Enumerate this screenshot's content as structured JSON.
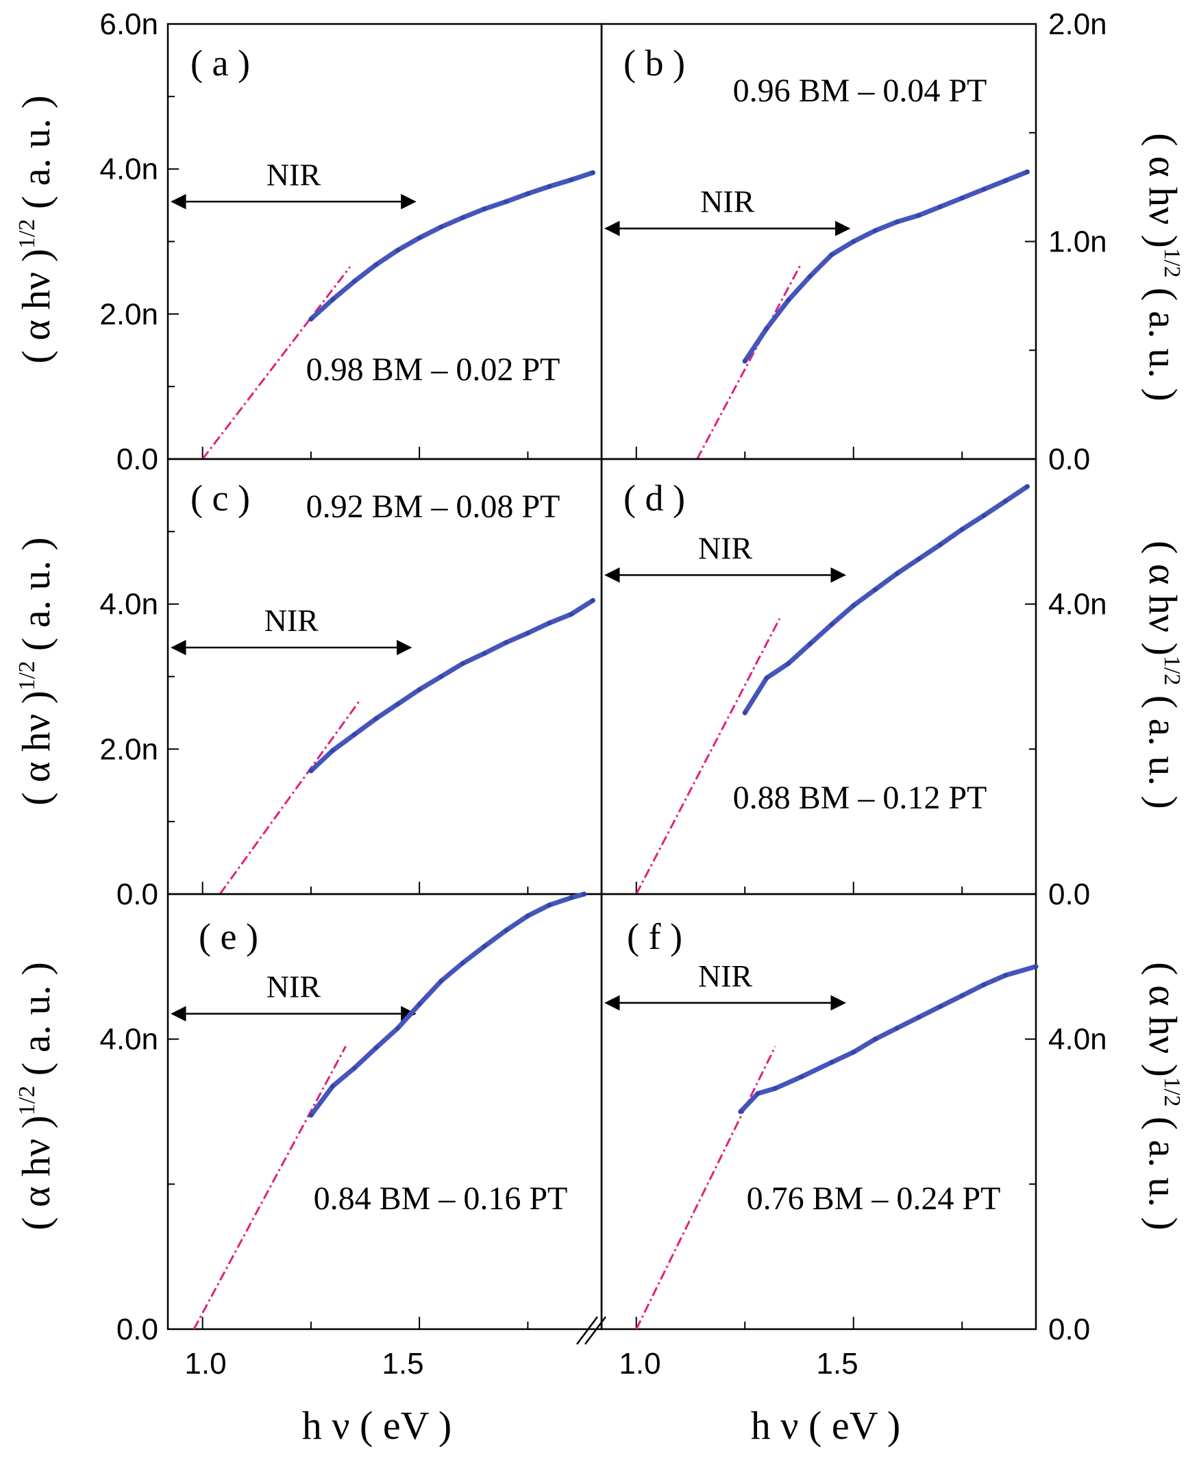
{
  "chart_data": {
    "type": "line",
    "xlabel": "h ν ( eV )",
    "ylabel_base": "( α hν )",
    "ylabel_exp": "1/2",
    "ylabel_unit": "( a. u. )",
    "colors": {
      "data": "#4455bb",
      "fit": "#e0217e",
      "axis": "#000000"
    },
    "x_axis_left": {
      "lim": [
        0.92,
        1.92
      ],
      "ticks": [
        1.0,
        1.5
      ],
      "tick_labels": [
        "1.0",
        "1.5"
      ],
      "minor_step": 0.25
    },
    "x_axis_right": {
      "lim": [
        0.92,
        1.92
      ],
      "ticks": [
        1.0,
        1.5
      ],
      "tick_labels": [
        "1.0",
        "1.5"
      ],
      "minor_step": 0.25
    },
    "panels": [
      {
        "id": "a",
        "label": "( a )",
        "composition": "0.98 BM – 0.02 PT",
        "y_lim": [
          0,
          6
        ],
        "y_ticks": [
          0,
          2,
          4,
          6
        ],
        "y_tick_labels": [
          "0.0",
          "2.0n",
          "4.0n",
          "6.0n"
        ],
        "y_side": "left",
        "nir_label": "NIR",
        "nir_range": [
          0.92,
          1.49
        ],
        "nir_y": 3.55,
        "data": {
          "x": [
            1.25,
            1.3,
            1.35,
            1.4,
            1.45,
            1.5,
            1.55,
            1.6,
            1.65,
            1.7,
            1.75,
            1.8,
            1.85,
            1.9
          ],
          "y": [
            1.93,
            2.2,
            2.45,
            2.68,
            2.88,
            3.05,
            3.2,
            3.33,
            3.45,
            3.55,
            3.66,
            3.76,
            3.85,
            3.95
          ]
        },
        "fit": {
          "x": [
            1.0,
            1.34
          ],
          "y": [
            0.0,
            2.65
          ]
        }
      },
      {
        "id": "b",
        "label": "( b )",
        "composition": "0.96 BM – 0.04 PT",
        "y_lim": [
          0,
          2
        ],
        "y_ticks": [
          0,
          1,
          2
        ],
        "y_tick_labels": [
          "0.0",
          "1.0n",
          "2.0n"
        ],
        "y_side": "right",
        "nir_label": "NIR",
        "nir_range": [
          0.92,
          1.49
        ],
        "nir_y": 1.06,
        "data": {
          "x": [
            1.25,
            1.3,
            1.35,
            1.4,
            1.45,
            1.5,
            1.55,
            1.6,
            1.65,
            1.7,
            1.75,
            1.8,
            1.85,
            1.9
          ],
          "y": [
            0.45,
            0.6,
            0.73,
            0.84,
            0.94,
            1.0,
            1.05,
            1.09,
            1.12,
            1.16,
            1.2,
            1.24,
            1.28,
            1.32
          ]
        },
        "fit": {
          "x": [
            1.14,
            1.38
          ],
          "y": [
            0.0,
            0.9
          ]
        }
      },
      {
        "id": "c",
        "label": "( c )",
        "composition": "0.92 BM – 0.08 PT",
        "y_lim": [
          0,
          6
        ],
        "y_ticks": [
          0,
          2,
          4
        ],
        "y_tick_labels": [
          "0.0",
          "2.0n",
          "4.0n"
        ],
        "y_side": "left",
        "nir_label": "NIR",
        "nir_range": [
          0.92,
          1.48
        ],
        "nir_y": 3.4,
        "data": {
          "x": [
            1.25,
            1.3,
            1.35,
            1.4,
            1.45,
            1.5,
            1.55,
            1.6,
            1.65,
            1.7,
            1.75,
            1.8,
            1.85,
            1.9
          ],
          "y": [
            1.7,
            1.98,
            2.2,
            2.42,
            2.62,
            2.82,
            3.0,
            3.18,
            3.32,
            3.47,
            3.6,
            3.74,
            3.86,
            4.05
          ]
        },
        "fit": {
          "x": [
            1.04,
            1.36
          ],
          "y": [
            0.0,
            2.65
          ]
        }
      },
      {
        "id": "d",
        "label": "( d )",
        "composition": "0.88 BM – 0.12 PT",
        "y_lim": [
          0,
          6
        ],
        "y_ticks": [
          0,
          4
        ],
        "y_tick_labels": [
          "0.0",
          "4.0n"
        ],
        "y_side": "right",
        "nir_label": "NIR",
        "nir_range": [
          0.92,
          1.48
        ],
        "nir_y": 4.4,
        "data": {
          "x": [
            1.25,
            1.3,
            1.35,
            1.4,
            1.45,
            1.5,
            1.55,
            1.6,
            1.65,
            1.7,
            1.75,
            1.8,
            1.85,
            1.9
          ],
          "y": [
            2.5,
            2.98,
            3.18,
            3.45,
            3.72,
            3.98,
            4.2,
            4.42,
            4.62,
            4.82,
            5.03,
            5.22,
            5.42,
            5.62
          ]
        },
        "fit": {
          "x": [
            1.0,
            1.33
          ],
          "y": [
            0.0,
            3.8
          ]
        }
      },
      {
        "id": "e",
        "label": "( e )",
        "composition": "0.84 BM – 0.16 PT",
        "y_lim": [
          0,
          6
        ],
        "y_ticks": [
          0,
          4
        ],
        "y_tick_labels": [
          "0.0",
          "4.0n"
        ],
        "y_side": "left",
        "nir_label": "NIR",
        "nir_range": [
          0.92,
          1.49
        ],
        "nir_y": 4.35,
        "data": {
          "x": [
            1.25,
            1.3,
            1.35,
            1.4,
            1.45,
            1.5,
            1.55,
            1.6,
            1.65,
            1.7,
            1.75,
            1.8,
            1.85,
            1.88
          ],
          "y": [
            2.95,
            3.35,
            3.6,
            3.88,
            4.15,
            4.48,
            4.8,
            5.05,
            5.28,
            5.5,
            5.7,
            5.85,
            5.95,
            6.0
          ]
        },
        "fit": {
          "x": [
            0.98,
            1.33
          ],
          "y": [
            0.0,
            3.9
          ]
        }
      },
      {
        "id": "f",
        "label": "( f )",
        "composition": "0.76 BM – 0.24 PT",
        "y_lim": [
          0,
          6
        ],
        "y_ticks": [
          0,
          4
        ],
        "y_tick_labels": [
          "0.0",
          "4.0n"
        ],
        "y_side": "right",
        "nir_label": "NIR",
        "nir_range": [
          0.92,
          1.48
        ],
        "nir_y": 4.5,
        "data": {
          "x": [
            1.24,
            1.28,
            1.32,
            1.38,
            1.45,
            1.5,
            1.55,
            1.6,
            1.65,
            1.7,
            1.75,
            1.8,
            1.85,
            1.92
          ],
          "y": [
            3.0,
            3.25,
            3.32,
            3.48,
            3.68,
            3.82,
            4.0,
            4.15,
            4.3,
            4.45,
            4.6,
            4.75,
            4.88,
            5.0
          ]
        },
        "fit": {
          "x": [
            1.0,
            1.32
          ],
          "y": [
            0.0,
            3.9
          ]
        }
      }
    ]
  }
}
